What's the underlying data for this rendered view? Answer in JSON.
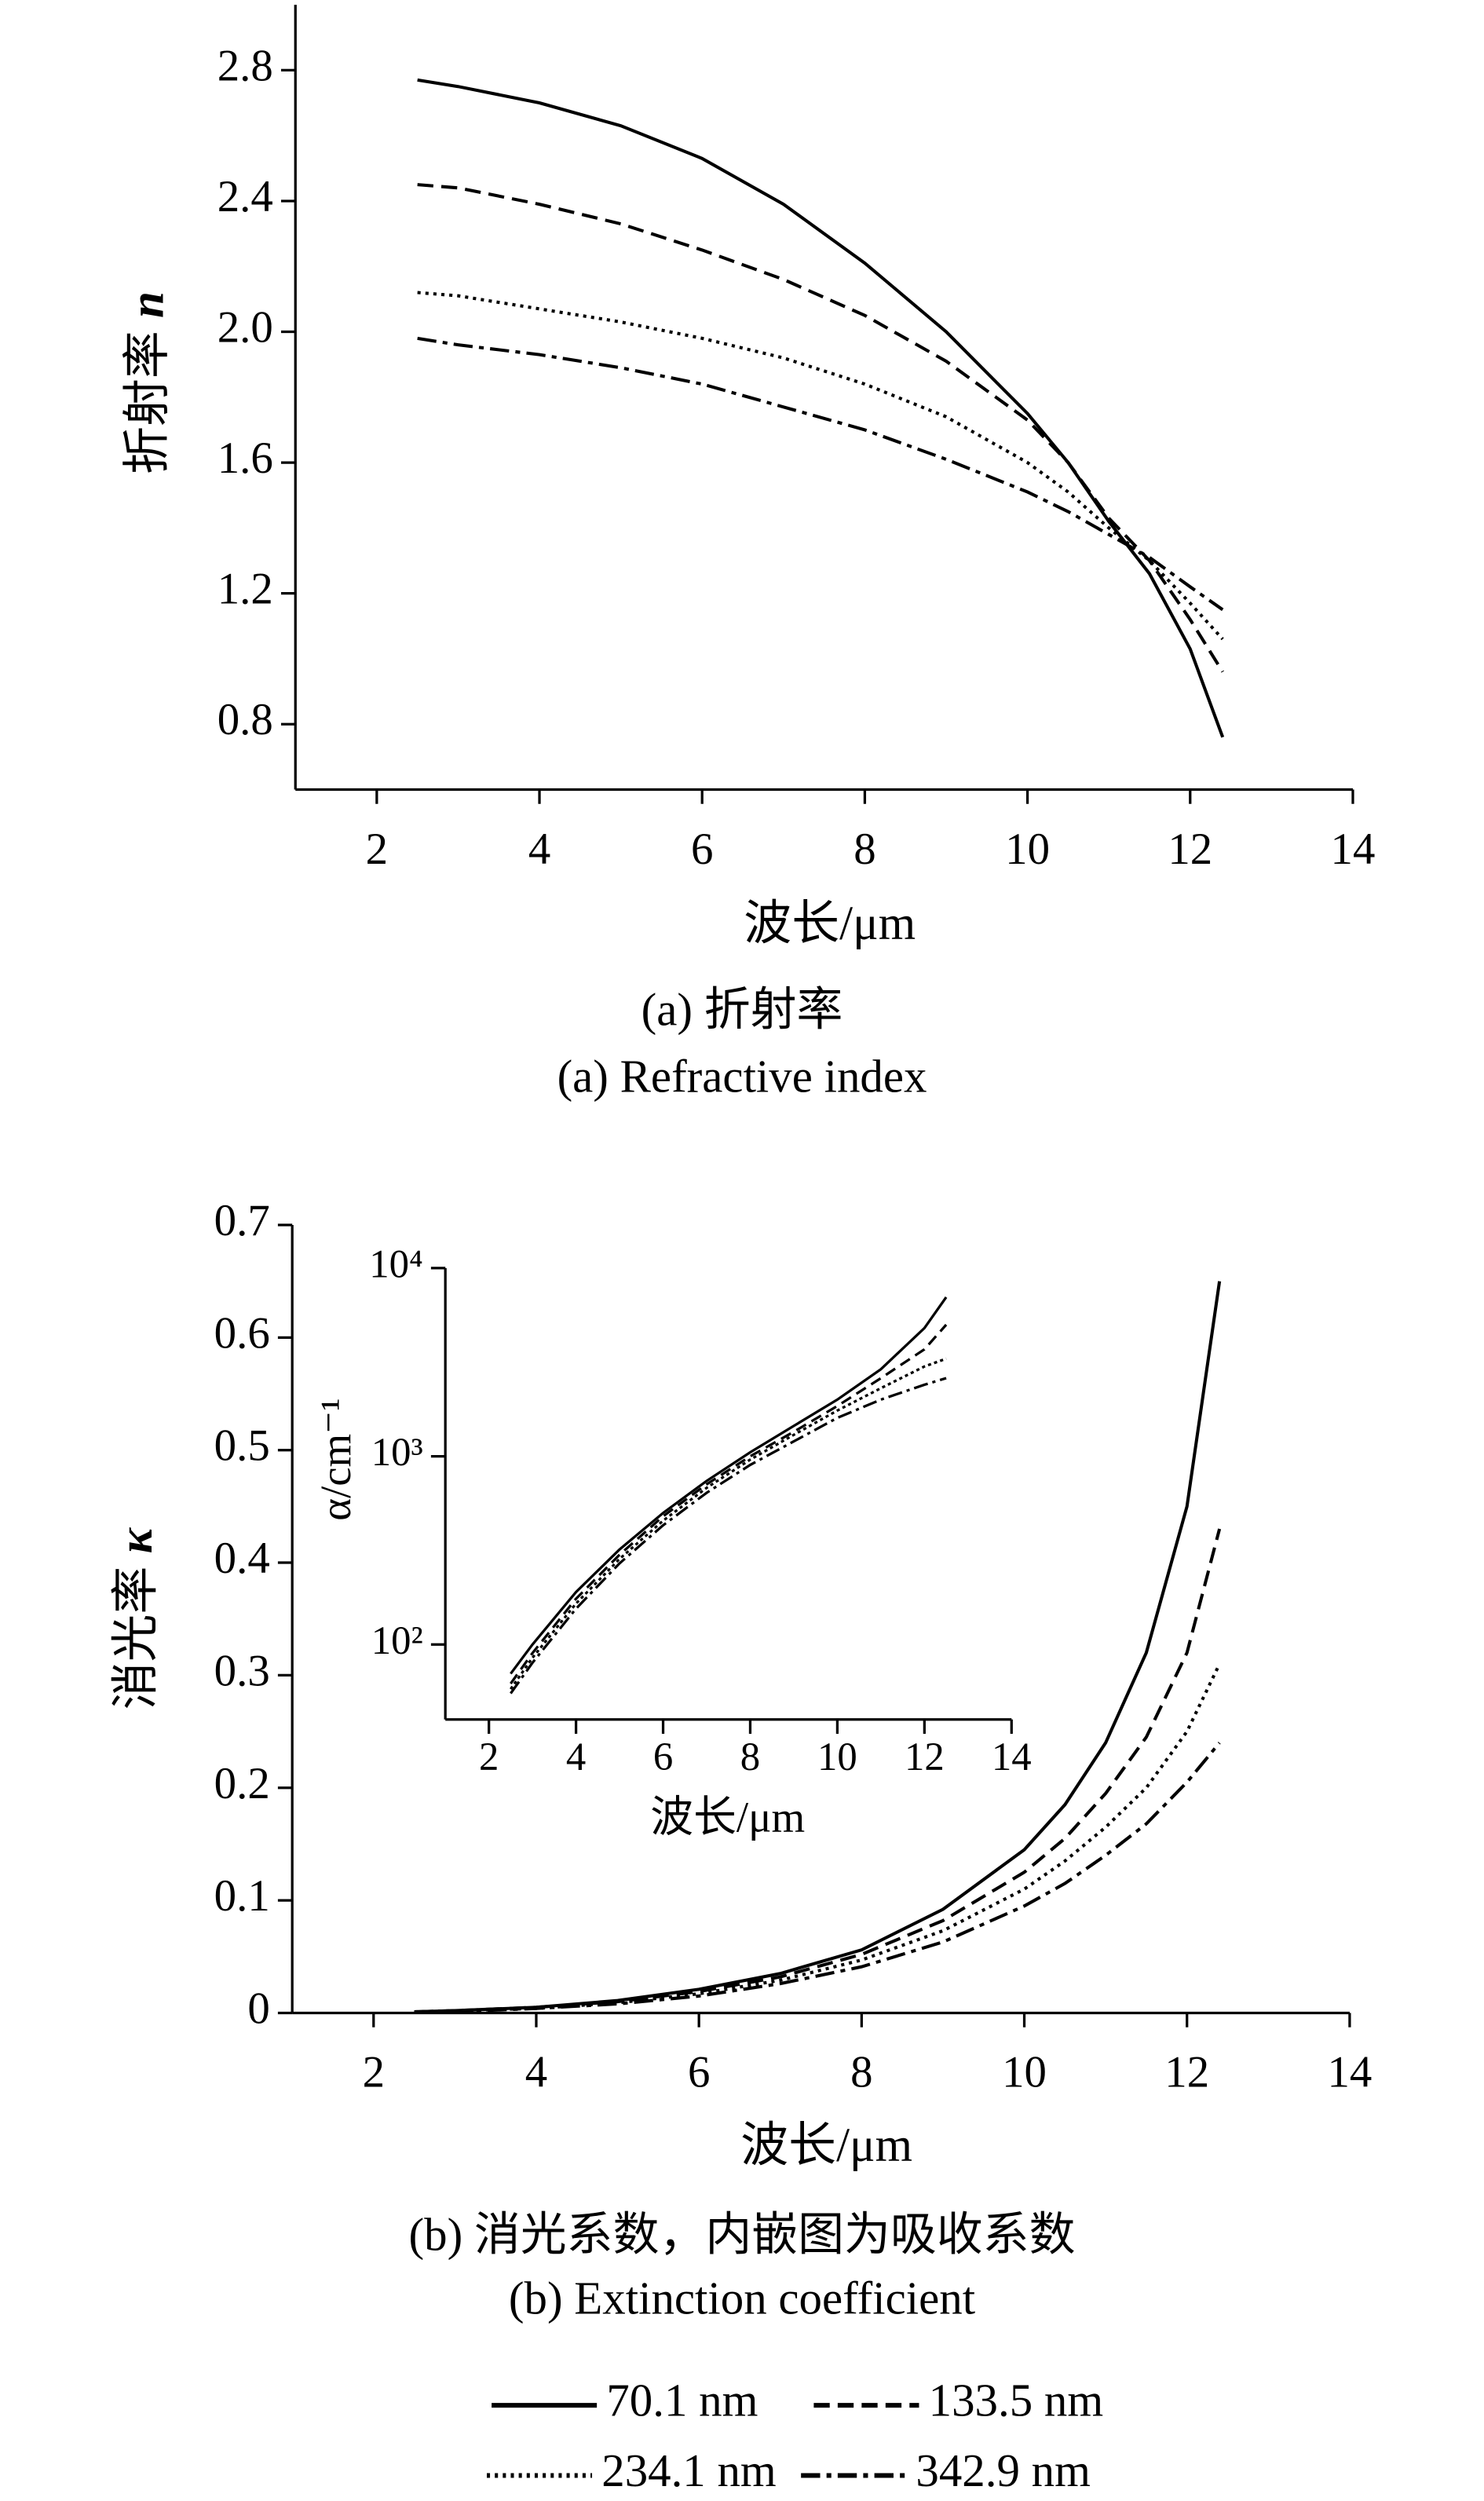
{
  "chart_data": [
    {
      "type": "line",
      "xlabel": "波长/μm",
      "ylabel": "折射率",
      "ylabel_symbol": "n",
      "caption": [
        "(a) 折射率",
        "(a) Refractive index"
      ],
      "xlim": [
        1,
        14
      ],
      "ylim": [
        0.6,
        3.0
      ],
      "xticks": [
        2,
        4,
        6,
        8,
        10,
        12,
        14
      ],
      "yticks": [
        0.8,
        1.2,
        1.6,
        {
          "value": 2,
          "label": "2.0"
        },
        2.4,
        2.8
      ],
      "x": [
        2.5,
        3,
        4,
        5,
        6,
        7,
        8,
        9,
        10,
        10.5,
        11,
        11.5,
        12,
        12.4
      ],
      "series": [
        {
          "name": "70.1 nm",
          "color": "#000000",
          "line_style": "solid",
          "values": [
            2.77,
            2.75,
            2.7,
            2.63,
            2.53,
            2.39,
            2.21,
            2.0,
            1.75,
            1.6,
            1.42,
            1.26,
            1.03,
            0.76
          ]
        },
        {
          "name": "133.5 nm",
          "color": "#000000",
          "line_style": "dashed",
          "values": [
            2.45,
            2.44,
            2.39,
            2.33,
            2.25,
            2.16,
            2.05,
            1.91,
            1.73,
            1.6,
            1.43,
            1.3,
            1.12,
            0.96
          ]
        },
        {
          "name": "234.1 nm",
          "color": "#000000",
          "line_style": "dotted",
          "values": [
            2.12,
            2.11,
            2.07,
            2.03,
            1.98,
            1.92,
            1.84,
            1.74,
            1.6,
            1.51,
            1.4,
            1.3,
            1.17,
            1.06
          ]
        },
        {
          "name": "342.9 nm",
          "color": "#000000",
          "line_style": "dashdot",
          "values": [
            1.98,
            1.96,
            1.93,
            1.89,
            1.84,
            1.77,
            1.7,
            1.61,
            1.51,
            1.45,
            1.38,
            1.31,
            1.22,
            1.15
          ]
        }
      ]
    },
    {
      "type": "line",
      "xlabel": "波长/μm",
      "ylabel": "消光率",
      "ylabel_symbol": "κ",
      "caption": [
        "(b) 消光系数，内嵌图为吸收系数",
        "(b) Extinction coefficient"
      ],
      "xlim": [
        1,
        14
      ],
      "ylim": [
        0,
        0.7
      ],
      "xticks": [
        2,
        4,
        6,
        8,
        10,
        12,
        14
      ],
      "yticks": [
        0,
        0.1,
        0.2,
        0.3,
        0.4,
        0.5,
        0.6,
        0.7
      ],
      "x": [
        2.5,
        3,
        4,
        5,
        6,
        7,
        8,
        9,
        10,
        10.5,
        11,
        11.5,
        12,
        12.4
      ],
      "series": [
        {
          "color": "#000000",
          "line_style": "solid",
          "values": [
            0.001,
            0.002,
            0.005,
            0.011,
            0.021,
            0.035,
            0.056,
            0.092,
            0.145,
            0.185,
            0.24,
            0.32,
            0.45,
            0.65
          ]
        },
        {
          "color": "#000000",
          "line_style": "dashed",
          "values": [
            0.001,
            0.002,
            0.005,
            0.01,
            0.019,
            0.032,
            0.052,
            0.082,
            0.125,
            0.155,
            0.195,
            0.245,
            0.32,
            0.43
          ]
        },
        {
          "color": "#000000",
          "line_style": "dotted",
          "values": [
            0.001,
            0.002,
            0.004,
            0.009,
            0.017,
            0.029,
            0.047,
            0.073,
            0.11,
            0.135,
            0.165,
            0.2,
            0.25,
            0.31
          ]
        },
        {
          "color": "#000000",
          "line_style": "dashdot",
          "values": [
            0.001,
            0.001,
            0.004,
            0.008,
            0.015,
            0.026,
            0.041,
            0.063,
            0.095,
            0.115,
            0.14,
            0.168,
            0.205,
            0.24
          ]
        }
      ]
    },
    {
      "type": "line",
      "xlabel": "波长/μm",
      "ylabel": "α/cm⁻¹",
      "log_y": true,
      "xlim": [
        1,
        14
      ],
      "ylim": [
        40,
        10000
      ],
      "xticks": [
        2,
        4,
        6,
        8,
        10,
        12,
        14
      ],
      "yticks": [
        {
          "value": 100,
          "label": "10²"
        },
        {
          "value": 1000,
          "label": "10³"
        },
        {
          "value": 10000,
          "label": "10⁴"
        }
      ],
      "x": [
        2.5,
        3,
        4,
        5,
        6,
        7,
        8,
        9,
        10,
        11,
        12,
        12.5
      ],
      "series": [
        {
          "color": "#000000",
          "line_style": "solid",
          "values": [
            70,
            100,
            190,
            320,
            500,
            740,
            1050,
            1450,
            2000,
            2900,
            4800,
            7000
          ]
        },
        {
          "color": "#000000",
          "line_style": "dashed",
          "values": [
            62,
            90,
            175,
            300,
            480,
            710,
            1000,
            1350,
            1850,
            2600,
            3700,
            5000
          ]
        },
        {
          "color": "#000000",
          "line_style": "dotted",
          "values": [
            58,
            85,
            165,
            285,
            455,
            680,
            960,
            1300,
            1750,
            2300,
            3000,
            3300
          ]
        },
        {
          "color": "#000000",
          "line_style": "dashdot",
          "values": [
            55,
            80,
            155,
            270,
            430,
            640,
            900,
            1200,
            1600,
            2000,
            2400,
            2600
          ]
        }
      ]
    }
  ]
}
